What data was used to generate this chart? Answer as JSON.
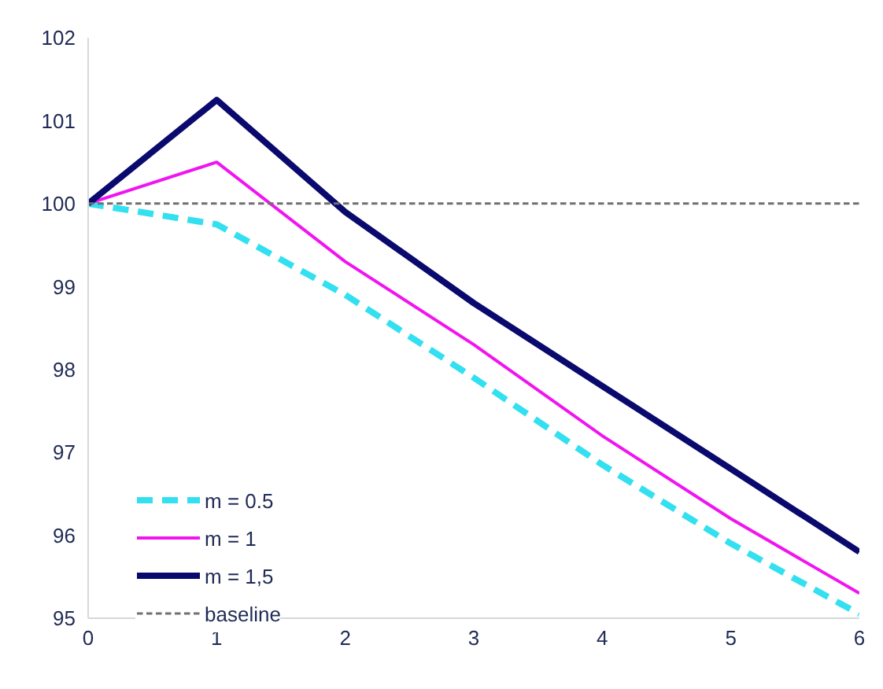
{
  "chart_data": {
    "type": "line",
    "x": [
      0,
      1,
      2,
      3,
      4,
      5,
      6
    ],
    "series": [
      {
        "name": "m = 0.5",
        "color": "#33e0f0",
        "line_style": "dashed",
        "values": [
          100,
          99.75,
          98.9,
          97.9,
          96.85,
          95.9,
          95.05
        ]
      },
      {
        "name": "m = 1",
        "color": "#f015f0",
        "line_style": "solid",
        "values": [
          100,
          100.5,
          99.3,
          98.3,
          97.2,
          96.2,
          95.3
        ]
      },
      {
        "name": "m = 1,5",
        "color": "#0a0a6e",
        "line_style": "solid",
        "values": [
          100,
          101.25,
          99.9,
          98.8,
          97.8,
          96.8,
          95.8
        ]
      },
      {
        "name": "baseline",
        "color": "#707070",
        "line_style": "dashed",
        "values": [
          100,
          100,
          100,
          100,
          100,
          100,
          100
        ]
      }
    ],
    "xlim": [
      0,
      6
    ],
    "xticks": [
      0,
      1,
      2,
      3,
      4,
      5,
      6
    ],
    "ylim": [
      95,
      102
    ],
    "yticks": [
      95,
      96,
      97,
      98,
      99,
      100,
      101,
      102
    ],
    "grid": false,
    "legend": "bottom left",
    "marker": "none"
  }
}
